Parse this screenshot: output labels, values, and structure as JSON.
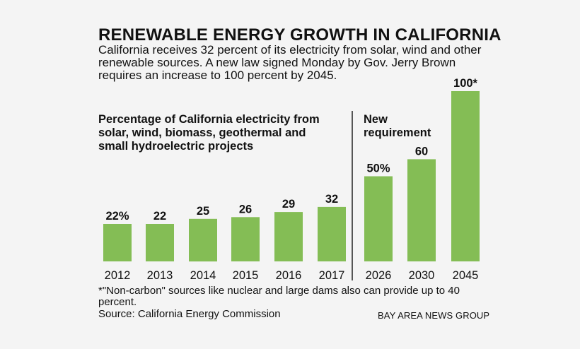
{
  "title": "RENEWABLE ENERGY GROWTH IN CALIFORNIA",
  "subtitle": "California receives 32 percent of its electricity from solar, wind and other renewable sources. A new law signed Monday by  Gov. Jerry Brown requires an increase to 100 percent by 2045.",
  "left_panel_label": "Percentage of California electricity from solar, wind, biomass, geothermal and small hydroelectric projects",
  "right_panel_label": "New requirement",
  "footnote": "*\"Non-carbon\" sources like nuclear and large dams also can provide up to 40 percent.",
  "source": "Source: California Energy Commission",
  "credit": "BAY AREA NEWS GROUP",
  "colors": {
    "bar": "#84bd55",
    "divider": "#222222",
    "background": "#f4f4f4"
  },
  "chart_data": {
    "type": "bar",
    "title": "RENEWABLE ENERGY GROWTH IN CALIFORNIA",
    "xlabel": "",
    "ylabel": "",
    "ylim": [
      0,
      100
    ],
    "categories": [
      "2012",
      "2013",
      "2014",
      "2015",
      "2016",
      "2017",
      "2026",
      "2030",
      "2045"
    ],
    "values": [
      22,
      22,
      25,
      26,
      29,
      32,
      50,
      60,
      100
    ],
    "labels": [
      "22%",
      "22",
      "25",
      "26",
      "29",
      "32",
      "50%",
      "60",
      "100*"
    ],
    "groups": [
      {
        "name": "Percentage of California electricity from solar, wind, biomass, geothermal and small hydroelectric projects",
        "categories": [
          "2012",
          "2013",
          "2014",
          "2015",
          "2016",
          "2017"
        ]
      },
      {
        "name": "New requirement",
        "categories": [
          "2026",
          "2030",
          "2045"
        ]
      }
    ]
  }
}
